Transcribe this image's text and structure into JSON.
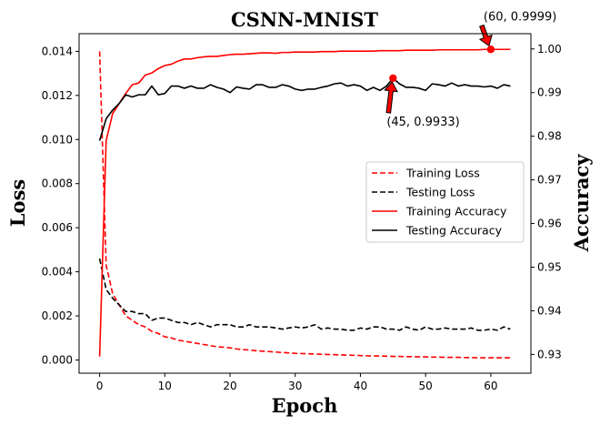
{
  "chart_data": {
    "type": "line",
    "title": "CSNN-MNIST",
    "xlabel": "Epoch",
    "ylabel_left": "Loss",
    "ylabel_right": "Accuracy",
    "xlim": [
      -3.15,
      66.15
    ],
    "ylim_left": [
      -0.0006,
      0.0148
    ],
    "ylim_right": [
      0.9257,
      1.0035
    ],
    "xticks": [
      0,
      10,
      20,
      30,
      40,
      50,
      60
    ],
    "yticks_left": [
      0.0,
      0.002,
      0.004,
      0.006,
      0.008,
      0.01,
      0.012,
      0.014
    ],
    "yticks_left_labels": [
      "0.000",
      "0.002",
      "0.004",
      "0.006",
      "0.008",
      "0.010",
      "0.012",
      "0.014"
    ],
    "yticks_right": [
      0.93,
      0.94,
      0.95,
      0.96,
      0.97,
      0.98,
      0.99,
      1.0
    ],
    "yticks_right_labels": [
      "0.93",
      "0.94",
      "0.95",
      "0.96",
      "0.97",
      "0.98",
      "0.99",
      "1.00"
    ],
    "grid": false,
    "legend_position": "center-right",
    "series": [
      {
        "name": "Training Loss",
        "axis": "left",
        "color": "#ff0000",
        "dash": "dashed",
        "x": [
          0,
          1,
          2,
          3,
          4,
          5,
          6,
          7,
          8,
          9,
          10,
          11,
          12,
          13,
          14,
          15,
          16,
          17,
          18,
          19,
          20,
          21,
          22,
          23,
          24,
          25,
          26,
          27,
          28,
          29,
          30,
          31,
          32,
          33,
          34,
          35,
          36,
          37,
          38,
          39,
          40,
          41,
          42,
          43,
          44,
          45,
          46,
          47,
          48,
          49,
          50,
          51,
          52,
          53,
          54,
          55,
          56,
          57,
          58,
          59,
          60,
          61,
          62,
          63
        ],
        "values": [
          0.014,
          0.0043,
          0.003,
          0.0025,
          0.002,
          0.0018,
          0.0016,
          0.0015,
          0.0013,
          0.0012,
          0.00105,
          0.001,
          0.0009,
          0.00085,
          0.0008,
          0.00075,
          0.0007,
          0.00065,
          0.0006,
          0.00058,
          0.00055,
          0.0005,
          0.00047,
          0.00045,
          0.00042,
          0.0004,
          0.00038,
          0.00036,
          0.00034,
          0.00032,
          0.0003,
          0.00029,
          0.00028,
          0.00027,
          0.00026,
          0.00025,
          0.00024,
          0.00023,
          0.00022,
          0.00021,
          0.0002,
          0.00019,
          0.00018,
          0.00018,
          0.00017,
          0.00016,
          0.00016,
          0.00015,
          0.00015,
          0.00014,
          0.00014,
          0.00013,
          0.00013,
          0.00012,
          0.00012,
          0.00012,
          0.00011,
          0.00011,
          0.0001,
          0.0001,
          0.0001,
          0.0001,
          0.0001,
          0.0001
        ]
      },
      {
        "name": "Testing Loss",
        "axis": "left",
        "color": "#000000",
        "dash": "dashed",
        "x": [
          0,
          1,
          2,
          3,
          4,
          5,
          6,
          7,
          8,
          9,
          10,
          11,
          12,
          13,
          14,
          15,
          16,
          17,
          18,
          19,
          20,
          21,
          22,
          23,
          24,
          25,
          26,
          27,
          28,
          29,
          30,
          31,
          32,
          33,
          34,
          35,
          36,
          37,
          38,
          39,
          40,
          41,
          42,
          43,
          44,
          45,
          46,
          47,
          48,
          49,
          50,
          51,
          52,
          53,
          54,
          55,
          56,
          57,
          58,
          59,
          60,
          61,
          62,
          63
        ],
        "values": [
          0.0046,
          0.0032,
          0.0028,
          0.0025,
          0.0022,
          0.0022,
          0.0021,
          0.0021,
          0.0018,
          0.0019,
          0.0019,
          0.0018,
          0.0017,
          0.0017,
          0.0016,
          0.0017,
          0.0016,
          0.0015,
          0.0016,
          0.0016,
          0.0016,
          0.0015,
          0.0015,
          0.0016,
          0.0015,
          0.0015,
          0.0015,
          0.00145,
          0.0014,
          0.00145,
          0.0015,
          0.00145,
          0.0015,
          0.0016,
          0.0014,
          0.00145,
          0.0014,
          0.0014,
          0.00135,
          0.00135,
          0.00145,
          0.0014,
          0.0015,
          0.0015,
          0.0014,
          0.0014,
          0.00135,
          0.0015,
          0.0014,
          0.00135,
          0.0015,
          0.0014,
          0.0014,
          0.00145,
          0.0014,
          0.0014,
          0.0014,
          0.00145,
          0.00135,
          0.00135,
          0.0014,
          0.00135,
          0.0015,
          0.0014
        ]
      },
      {
        "name": "Training Accuracy",
        "axis": "right",
        "color": "#ff0000",
        "dash": "solid",
        "x": [
          0,
          1,
          2,
          3,
          4,
          5,
          6,
          7,
          8,
          9,
          10,
          11,
          12,
          13,
          14,
          15,
          16,
          17,
          18,
          19,
          20,
          21,
          22,
          23,
          24,
          25,
          26,
          27,
          28,
          29,
          30,
          31,
          32,
          33,
          34,
          35,
          36,
          37,
          38,
          39,
          40,
          41,
          42,
          43,
          44,
          45,
          46,
          47,
          48,
          49,
          50,
          51,
          52,
          53,
          54,
          55,
          56,
          57,
          58,
          59,
          60,
          61,
          62,
          63
        ],
        "values": [
          0.9295,
          0.979,
          0.9852,
          0.9875,
          0.9898,
          0.9918,
          0.9922,
          0.994,
          0.9945,
          0.9955,
          0.9962,
          0.9965,
          0.9972,
          0.9977,
          0.9977,
          0.998,
          0.9982,
          0.9983,
          0.9983,
          0.9985,
          0.9987,
          0.9988,
          0.9988,
          0.9989,
          0.999,
          0.9991,
          0.9991,
          0.999,
          0.9992,
          0.9992,
          0.9993,
          0.9993,
          0.9993,
          0.9993,
          0.9994,
          0.9994,
          0.9994,
          0.9995,
          0.9995,
          0.9995,
          0.9995,
          0.9995,
          0.9995,
          0.9996,
          0.9996,
          0.9996,
          0.9996,
          0.9997,
          0.9997,
          0.9997,
          0.9997,
          0.9997,
          0.9998,
          0.9998,
          0.9998,
          0.9998,
          0.9998,
          0.9998,
          0.9998,
          0.9999,
          0.9999,
          0.9999,
          0.9999,
          0.9999
        ]
      },
      {
        "name": "Testing Accuracy",
        "axis": "right",
        "color": "#000000",
        "dash": "solid",
        "x": [
          0,
          1,
          2,
          3,
          4,
          5,
          6,
          7,
          8,
          9,
          10,
          11,
          12,
          13,
          14,
          15,
          16,
          17,
          18,
          19,
          20,
          21,
          22,
          23,
          24,
          25,
          26,
          27,
          28,
          29,
          30,
          31,
          32,
          33,
          34,
          35,
          36,
          37,
          38,
          39,
          40,
          41,
          42,
          43,
          44,
          45,
          46,
          47,
          48,
          49,
          50,
          51,
          52,
          53,
          54,
          55,
          56,
          57,
          58,
          59,
          60,
          61,
          62,
          63
        ],
        "values": [
          0.979,
          0.984,
          0.986,
          0.9875,
          0.9895,
          0.989,
          0.9895,
          0.9895,
          0.9915,
          0.9895,
          0.9898,
          0.9915,
          0.9915,
          0.991,
          0.9915,
          0.991,
          0.991,
          0.9918,
          0.9912,
          0.9908,
          0.99,
          0.9913,
          0.991,
          0.9908,
          0.9918,
          0.9918,
          0.9912,
          0.9912,
          0.9918,
          0.9915,
          0.9908,
          0.9905,
          0.9908,
          0.9908,
          0.9912,
          0.9915,
          0.992,
          0.9922,
          0.9915,
          0.9918,
          0.9915,
          0.9905,
          0.9912,
          0.9905,
          0.9915,
          0.9933,
          0.992,
          0.9912,
          0.9912,
          0.991,
          0.9905,
          0.992,
          0.9918,
          0.9915,
          0.9922,
          0.9915,
          0.9918,
          0.9915,
          0.9915,
          0.9913,
          0.9915,
          0.991,
          0.9918,
          0.9915
        ]
      }
    ],
    "annotations": [
      {
        "label": "(60, 0.9999)",
        "x": 60,
        "y": 0.9999,
        "axis": "right",
        "marker_color": "#ff0000",
        "arrow_color": "#ff0000"
      },
      {
        "label": "(45, 0.9933)",
        "x": 45,
        "y": 0.9933,
        "axis": "right",
        "marker_color": "#ff0000",
        "arrow_color": "#ff0000"
      }
    ]
  }
}
